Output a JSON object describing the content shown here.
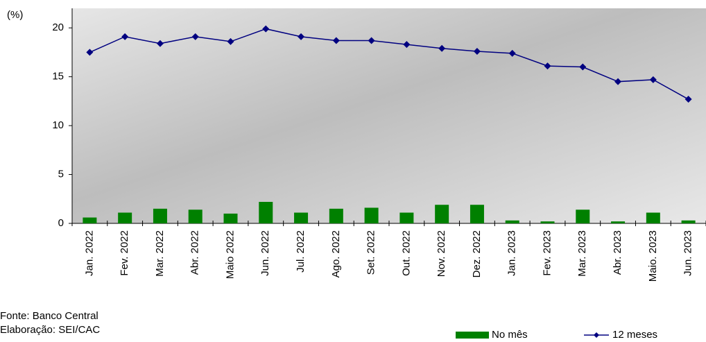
{
  "chart_data": {
    "type": "combo",
    "y_label": "(%)",
    "categories": [
      "Jan. 2022",
      "Fev. 2022",
      "Mar. 2022",
      "Abr. 2022",
      "Maio 2022",
      "Jun. 2022",
      "Jul. 2022",
      "Ago. 2022",
      "Set. 2022",
      "Out. 2022",
      "Nov. 2022",
      "Dez. 2022",
      "Jan. 2023",
      "Fev. 2023",
      "Mar. 2023",
      "Abr. 2023",
      "Maio. 2023",
      "Jun. 2023"
    ],
    "series": [
      {
        "name": "No mês",
        "type": "bar",
        "color": "#008000",
        "values": [
          0.6,
          1.1,
          1.5,
          1.4,
          1.0,
          2.2,
          1.1,
          1.5,
          1.6,
          1.1,
          1.9,
          1.9,
          0.3,
          0.2,
          1.4,
          0.2,
          1.1,
          0.3
        ]
      },
      {
        "name": "12 meses",
        "type": "line",
        "color": "#000080",
        "values": [
          17.5,
          19.1,
          18.4,
          19.1,
          18.6,
          19.9,
          19.1,
          18.7,
          18.7,
          18.3,
          17.9,
          17.6,
          17.4,
          16.1,
          16.0,
          14.5,
          14.7,
          12.7
        ]
      }
    ],
    "ylim": [
      0,
      22
    ],
    "yticks": [
      0,
      5,
      10,
      15,
      20
    ],
    "notes": [
      "Fonte: Banco Central",
      "Elaboração: SEI/CAC"
    ]
  }
}
